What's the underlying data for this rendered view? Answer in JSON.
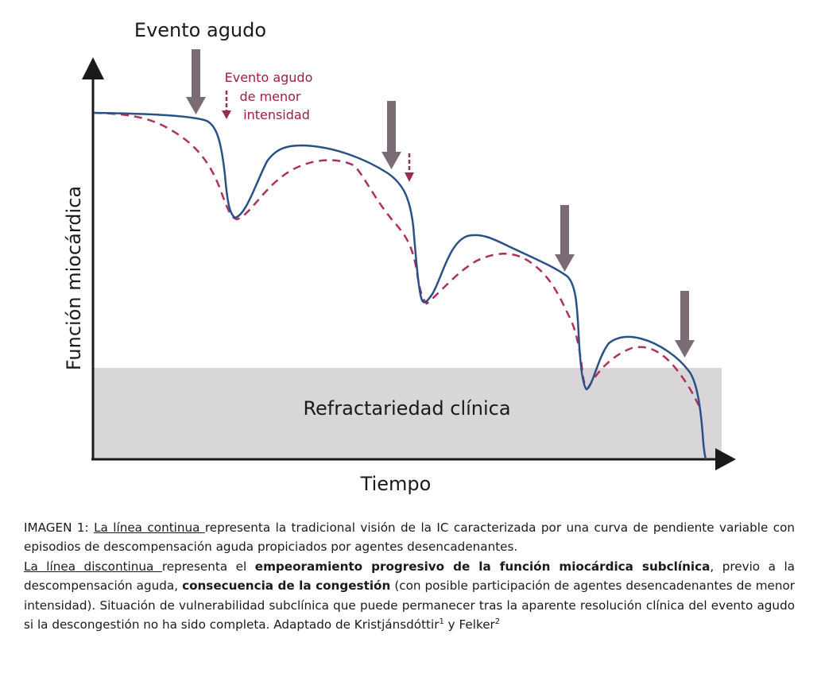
{
  "figure": {
    "title_acute": "Evento agudo",
    "minor_event_line1": "Evento agudo",
    "minor_event_line2": "de menor",
    "minor_event_line3": "intensidad",
    "y_axis_label": "Función miocárdica",
    "x_axis_label": "Tiempo",
    "zone_label": "Refractariedad clínica",
    "colors": {
      "solid_line": "#2a5088",
      "dashed_line": "#b0305a",
      "major_arrow": "#7a6b74",
      "minor_arrow": "#9b2e4e",
      "zone_fill": "#d8d6d8",
      "minor_text": "#a21d3c"
    },
    "icons": [
      "arrow-down-icon",
      "dashed-arrow-down-icon",
      "axis-arrow-icon"
    ]
  },
  "caption": {
    "p1_prefix": "IMAGEN 1: ",
    "p1_underlined": "La línea continua ",
    "p1_rest": "representa la tradicional visión de la IC caracterizada por una curva de pendiente variable con episodios de descompensación aguda propiciados por agentes desencadenantes.",
    "p2_underlined": "La línea discontinua ",
    "p2_text1": "representa el ",
    "p2_bold1": "empeoramiento progresivo de la función miocárdica subclínica",
    "p2_text2": ", previo a la descompensación aguda, ",
    "p2_bold2": "consecuencia de la congestión",
    "p2_text3": " (con posible participación de agentes desencadenantes de menor intensidad). Situación de vulnerabilidad subclínica que puede permanecer tras la aparente resolución clínica del evento agudo si la descongestión no ha sido completa. Adaptado de Kristjánsdóttir",
    "sup1": "1",
    "p2_text4": " y Felker",
    "sup2": "2"
  }
}
